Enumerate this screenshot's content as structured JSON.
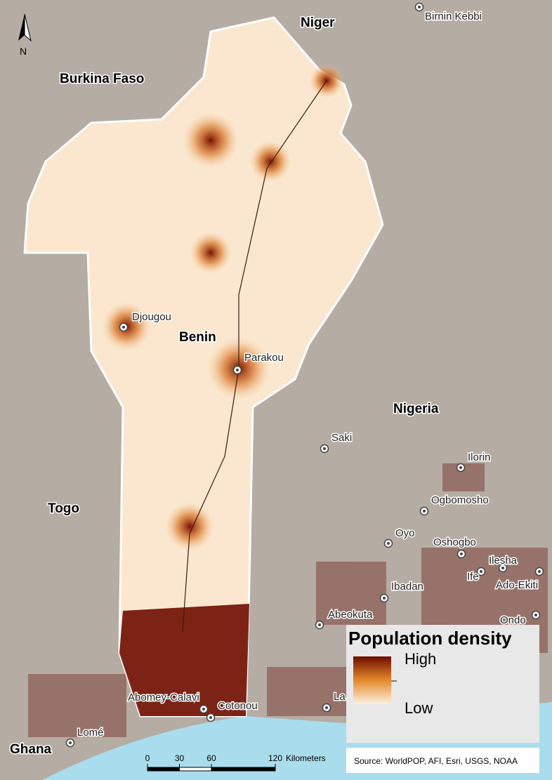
{
  "north_arrow": "N",
  "countries": [
    "Niger",
    "Burkina Faso",
    "Benin",
    "Nigeria",
    "Togo",
    "Ghana"
  ],
  "cities": [
    "Birnin Kebbi",
    "Djougou",
    "Parakou",
    "Saki",
    "Ilorin",
    "Ogbomosho",
    "Oyo",
    "Oshogbo",
    "Ilesha",
    "Ife",
    "Ado-Ekiti",
    "Ibadan",
    "Abeokuta",
    "Ondo",
    "Abomey-Calavi",
    "Cotonou",
    "La",
    "Lomé"
  ],
  "legend": {
    "title": "Population density",
    "high": "High",
    "low": "Low"
  },
  "scale_bar": {
    "ticks": [
      0,
      30,
      60,
      120
    ],
    "unit": "Kilometers"
  },
  "source": "Source: WorldPOP, AFI, Esri, USGS, NOAA"
}
